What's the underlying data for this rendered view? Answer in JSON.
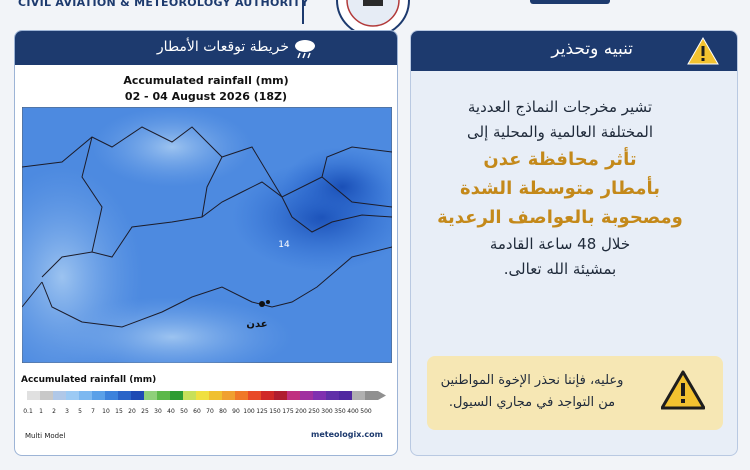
{
  "header": {
    "authority": "CIVIL AVIATION & METEOROLOGY AUTHORITY"
  },
  "map_panel": {
    "title": "خريطة توقعات الأمطار",
    "chart_title": "Accumulated rainfall (mm)",
    "chart_subtitle": "02 - 04 August 2026 (18Z)",
    "max_label": "14",
    "city_label": "عدن",
    "legend_title": "Accumulated rainfall (mm)",
    "legend_labels": [
      "0.1",
      "1",
      "2",
      "3",
      "5",
      "7",
      "10",
      "15",
      "20",
      "25",
      "30",
      "40",
      "50",
      "60",
      "70",
      "80",
      "90",
      "100",
      "125",
      "150",
      "175",
      "200",
      "250",
      "300",
      "350",
      "400",
      "500"
    ],
    "model": "Multi Model",
    "source": "meteologix.com"
  },
  "warning_panel": {
    "title": "تنبيه وتحذير",
    "lines": [
      "تشير مخرجات النماذج العددية",
      "المختلفة العالمية والمحلية إلى"
    ],
    "highlight": [
      "تأثر محافظة عدن",
      "بأمطار متوسطة الشدة",
      "ومصحوبة بالعواصف الرعدية"
    ],
    "closing": [
      "خلال 48 ساعة القادمة",
      "بمشيئة الله تعالى."
    ],
    "alert": [
      "وعليه، فإننا نحذر الإخوة المواطنين",
      "من التواجد في مجاري السيول."
    ]
  }
}
